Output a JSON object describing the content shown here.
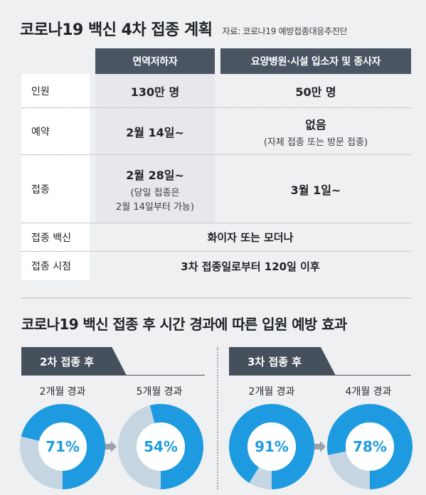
{
  "title": "코로나19 백신 4차 접종 계획",
  "source": "자료: 코로나19 예방접종대응추진단",
  "table": {
    "headers": [
      "면역저하자",
      "요양병원·시설 입소자 및 종사자"
    ],
    "rows": [
      {
        "label": "인원",
        "col1": "130만 명",
        "col2": "50만 명"
      },
      {
        "label": "예약",
        "col1": "2월 14일~",
        "col2": "없음",
        "col2_sub": "(자체 접종 또는 방문 접종)"
      },
      {
        "label": "접종",
        "col1": "2월 28일~",
        "col1_sub1": "(당일 접종은",
        "col1_sub2": "2월 14일부터 가능)",
        "col2": "3월 1일~"
      },
      {
        "label": "접종 백신",
        "span": "화이자 또는 모더나"
      },
      {
        "label": "접종 시점",
        "span": "3차 접종일로부터 120일 이후"
      }
    ]
  },
  "section2": {
    "title": "코로나19 백신 접종 후 시간 경과에 따른 입원 예방 효과",
    "groups": [
      {
        "tag": "2차 접종 후",
        "items": [
          {
            "label": "2개월 경과",
            "value": 71,
            "text": "71%"
          },
          {
            "label": "5개월 경과",
            "value": 54,
            "text": "54%"
          }
        ]
      },
      {
        "tag": "3차 접종 후",
        "items": [
          {
            "label": "2개월 경과",
            "value": 91,
            "text": "91%"
          },
          {
            "label": "4개월 경과",
            "value": 78,
            "text": "78%"
          }
        ]
      }
    ]
  },
  "colors": {
    "accent": "#1e9be0",
    "track": "#c5d6e2",
    "header": "#4a5462",
    "arrow": "#9aa2ac"
  }
}
